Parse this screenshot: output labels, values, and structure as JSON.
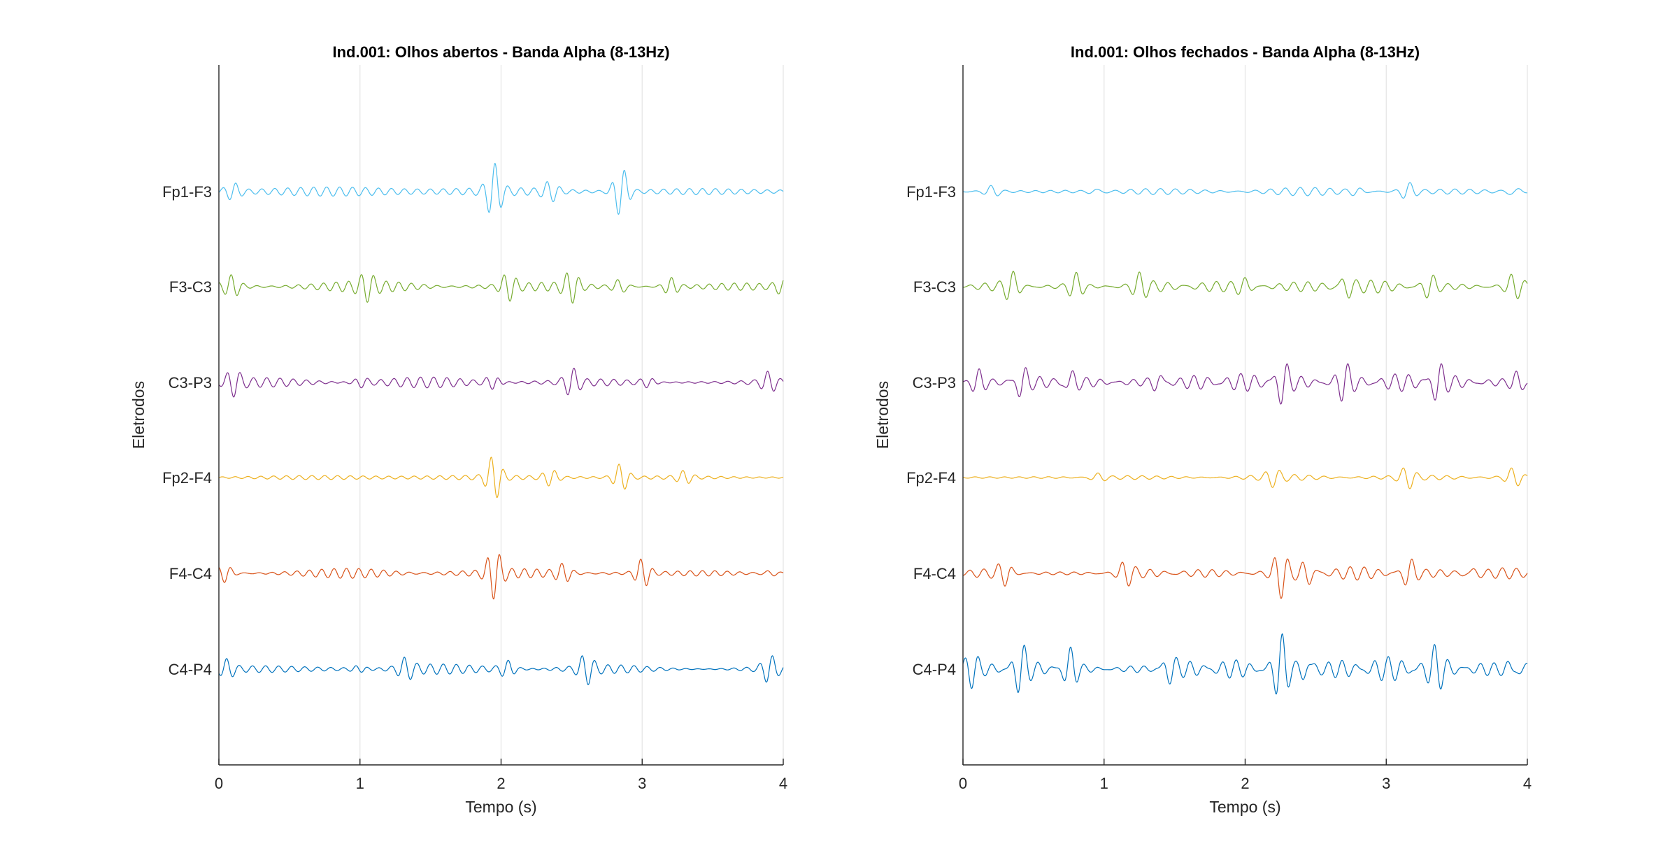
{
  "colors": {
    "Fp1-F3": "#4DBEEE",
    "F3-C3": "#77AC30",
    "C3-P3": "#7E2F8E",
    "Fp2-F4": "#EDB120",
    "F4-C4": "#D95319",
    "C4-P4": "#0072BD",
    "axis": "#262626",
    "grid": "#e6e6e6"
  },
  "chart_data": [
    {
      "type": "line",
      "title": "Ind.001: Olhos abertos - Banda Alpha (8-13Hz)",
      "xlabel": "Tempo (s)",
      "ylabel": "Eletrodos",
      "xlim": [
        0,
        4
      ],
      "xticks": [
        "0",
        "1",
        "2",
        "3",
        "4"
      ],
      "grid": "x",
      "channels": [
        "Fp1-F3",
        "F3-C3",
        "C3-P3",
        "Fp2-F4",
        "F4-C4",
        "C4-P4"
      ],
      "series": [
        {
          "name": "Fp1-F3",
          "base_amplitude": 0.18,
          "bursts": [
            {
              "t": 0.1,
              "a": 0.3
            },
            {
              "t": 1.95,
              "a": 0.9
            },
            {
              "t": 2.85,
              "a": 0.85
            },
            {
              "t": 2.35,
              "a": 0.3
            }
          ]
        },
        {
          "name": "F3-C3",
          "base_amplitude": 0.22,
          "bursts": [
            {
              "t": 0.1,
              "a": 0.55
            },
            {
              "t": 1.05,
              "a": 0.35
            },
            {
              "t": 2.05,
              "a": 0.5
            },
            {
              "t": 2.5,
              "a": 0.55
            },
            {
              "t": 2.85,
              "a": 0.9
            },
            {
              "t": 3.2,
              "a": 0.45
            },
            {
              "t": 4.0,
              "a": 0.45
            }
          ]
        },
        {
          "name": "C3-P3",
          "base_amplitude": 0.2,
          "bursts": [
            {
              "t": 0.1,
              "a": 0.45
            },
            {
              "t": 1.0,
              "a": 0.35
            },
            {
              "t": 1.95,
              "a": 0.75
            },
            {
              "t": 2.5,
              "a": 0.45
            },
            {
              "t": 3.05,
              "a": 0.4
            },
            {
              "t": 3.9,
              "a": 0.35
            }
          ]
        },
        {
          "name": "Fp2-F4",
          "base_amplitude": 0.12,
          "bursts": [
            {
              "t": 1.95,
              "a": 1.0
            },
            {
              "t": 2.35,
              "a": 0.35
            },
            {
              "t": 2.85,
              "a": 0.6
            },
            {
              "t": 3.3,
              "a": 0.25
            }
          ]
        },
        {
          "name": "F4-C4",
          "base_amplitude": 0.2,
          "bursts": [
            {
              "t": 0.05,
              "a": 0.65
            },
            {
              "t": 1.95,
              "a": 0.8
            },
            {
              "t": 2.45,
              "a": 0.55
            },
            {
              "t": 3.0,
              "a": 0.6
            },
            {
              "t": 3.9,
              "a": 0.35
            }
          ]
        },
        {
          "name": "C4-P4",
          "base_amplitude": 0.2,
          "bursts": [
            {
              "t": 0.05,
              "a": 0.55
            },
            {
              "t": 1.0,
              "a": 0.4
            },
            {
              "t": 1.32,
              "a": 0.45
            },
            {
              "t": 2.05,
              "a": 0.5
            },
            {
              "t": 2.6,
              "a": 0.55
            },
            {
              "t": 3.9,
              "a": 0.45
            }
          ]
        }
      ]
    },
    {
      "type": "line",
      "title": "Ind.001: Olhos fechados - Banda Alpha (8-13Hz)",
      "xlabel": "Tempo (s)",
      "ylabel": "Eletrodos",
      "xlim": [
        0,
        4
      ],
      "xticks": [
        "0",
        "1",
        "2",
        "3",
        "4"
      ],
      "grid": "x",
      "channels": [
        "Fp1-F3",
        "F3-C3",
        "C3-P3",
        "Fp2-F4",
        "F4-C4",
        "C4-P4"
      ],
      "series": [
        {
          "name": "Fp1-F3",
          "base_amplitude": 0.15,
          "bursts": [
            {
              "t": 0.2,
              "a": 0.3
            },
            {
              "t": 0.95,
              "a": 0.3
            },
            {
              "t": 2.8,
              "a": 0.25
            },
            {
              "t": 3.15,
              "a": 0.4
            },
            {
              "t": 3.9,
              "a": 0.5
            }
          ]
        },
        {
          "name": "F3-C3",
          "base_amplitude": 0.25,
          "bursts": [
            {
              "t": 0.35,
              "a": 0.55
            },
            {
              "t": 0.8,
              "a": 0.45
            },
            {
              "t": 1.25,
              "a": 0.4
            },
            {
              "t": 2.0,
              "a": 0.35
            },
            {
              "t": 2.7,
              "a": 0.75
            },
            {
              "t": 3.3,
              "a": 0.55
            },
            {
              "t": 3.9,
              "a": 0.4
            }
          ]
        },
        {
          "name": "C3-P3",
          "base_amplitude": 0.35,
          "bursts": [
            {
              "t": 0.1,
              "a": 0.45
            },
            {
              "t": 0.4,
              "a": 0.85
            },
            {
              "t": 0.75,
              "a": 0.65
            },
            {
              "t": 1.4,
              "a": 0.5
            },
            {
              "t": 2.25,
              "a": 1.0
            },
            {
              "t": 2.7,
              "a": 0.55
            },
            {
              "t": 3.35,
              "a": 0.85
            },
            {
              "t": 3.95,
              "a": 0.55
            }
          ]
        },
        {
          "name": "Fp2-F4",
          "base_amplitude": 0.12,
          "bursts": [
            {
              "t": 0.95,
              "a": 0.3
            },
            {
              "t": 2.2,
              "a": 0.25
            },
            {
              "t": 3.15,
              "a": 0.35
            },
            {
              "t": 3.9,
              "a": 0.4
            }
          ]
        },
        {
          "name": "F4-C4",
          "base_amplitude": 0.25,
          "bursts": [
            {
              "t": 0.3,
              "a": 0.45
            },
            {
              "t": 1.15,
              "a": 0.4
            },
            {
              "t": 2.25,
              "a": 0.75
            },
            {
              "t": 2.45,
              "a": 0.6
            },
            {
              "t": 3.15,
              "a": 0.75
            },
            {
              "t": 3.6,
              "a": 0.4
            }
          ]
        },
        {
          "name": "C4-P4",
          "base_amplitude": 0.45,
          "bursts": [
            {
              "t": 0.05,
              "a": 0.6
            },
            {
              "t": 0.4,
              "a": 0.9
            },
            {
              "t": 0.75,
              "a": 0.85
            },
            {
              "t": 1.45,
              "a": 0.6
            },
            {
              "t": 2.25,
              "a": 1.1
            },
            {
              "t": 2.45,
              "a": 0.75
            },
            {
              "t": 3.35,
              "a": 0.55
            },
            {
              "t": 3.9,
              "a": 0.5
            }
          ]
        }
      ]
    }
  ]
}
